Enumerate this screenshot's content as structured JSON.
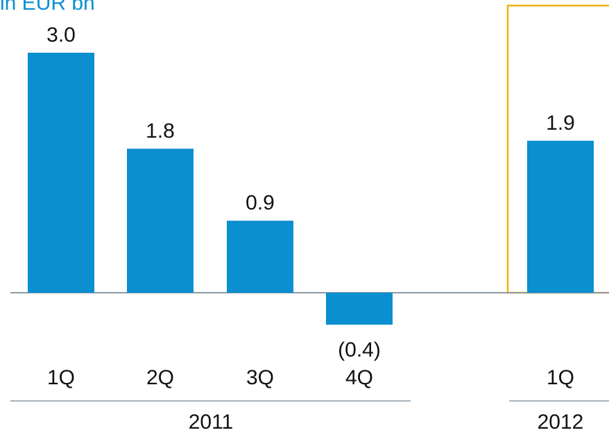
{
  "chart_data": {
    "type": "bar",
    "title": "in EUR bn",
    "color": "#0a8fd0",
    "groups": [
      {
        "name": "2011",
        "categories": [
          "1Q",
          "2Q",
          "3Q",
          "4Q"
        ],
        "values": [
          3.0,
          1.8,
          0.9,
          -0.4
        ],
        "value_labels": [
          "3.0",
          "1.8",
          "0.9",
          "(0.4)"
        ]
      },
      {
        "name": "2012",
        "categories": [
          "1Q"
        ],
        "values": [
          1.9
        ],
        "value_labels": [
          "1.9"
        ]
      }
    ]
  }
}
